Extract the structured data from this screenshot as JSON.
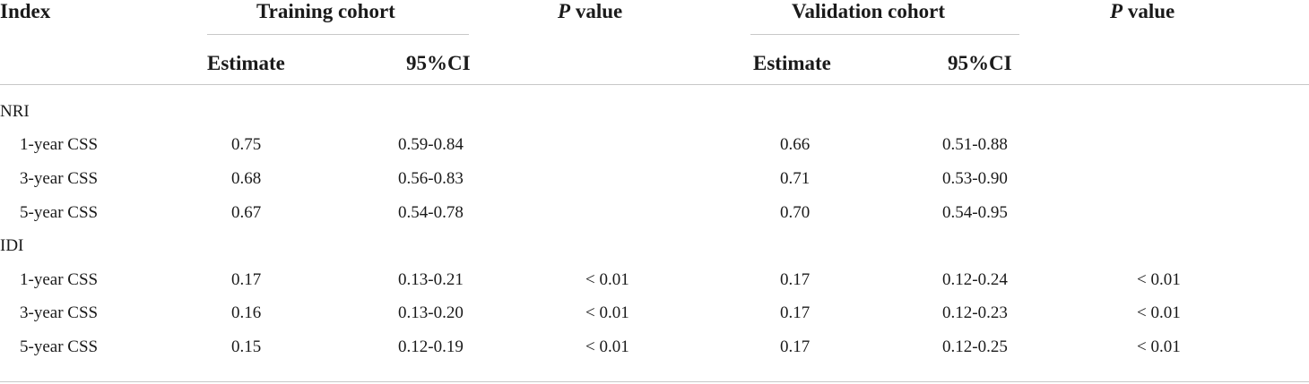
{
  "table": {
    "headers": {
      "index": "Index",
      "training_cohort": "Training cohort",
      "p_value_italic": "P",
      "p_value_rest": " value",
      "validation_cohort": "Validation cohort",
      "estimate": "Estimate",
      "ci": "95%CI"
    },
    "rows": [
      {
        "label": "NRI",
        "section": true
      },
      {
        "label": "1-year CSS",
        "train_est": "0.75",
        "train_ci": "0.59-0.84",
        "train_p": "",
        "val_est": "0.66",
        "val_ci": "0.51-0.88",
        "val_p": ""
      },
      {
        "label": "3-year CSS",
        "train_est": "0.68",
        "train_ci": "0.56-0.83",
        "train_p": "",
        "val_est": "0.71",
        "val_ci": "0.53-0.90",
        "val_p": ""
      },
      {
        "label": "5-year CSS",
        "train_est": "0.67",
        "train_ci": "0.54-0.78",
        "train_p": "",
        "val_est": "0.70",
        "val_ci": "0.54-0.95",
        "val_p": ""
      },
      {
        "label": "IDI",
        "section": true
      },
      {
        "label": "1-year CSS",
        "train_est": "0.17",
        "train_ci": "0.13-0.21",
        "train_p": "< 0.01",
        "val_est": "0.17",
        "val_ci": "0.12-0.24",
        "val_p": "< 0.01"
      },
      {
        "label": "3-year CSS",
        "train_est": "0.16",
        "train_ci": "0.13-0.20",
        "train_p": "< 0.01",
        "val_est": "0.17",
        "val_ci": "0.12-0.23",
        "val_p": "< 0.01"
      },
      {
        "label": "5-year CSS",
        "train_est": "0.15",
        "train_ci": "0.12-0.19",
        "train_p": "< 0.01",
        "val_est": "0.17",
        "val_ci": "0.12-0.25",
        "val_p": "< 0.01"
      }
    ]
  }
}
